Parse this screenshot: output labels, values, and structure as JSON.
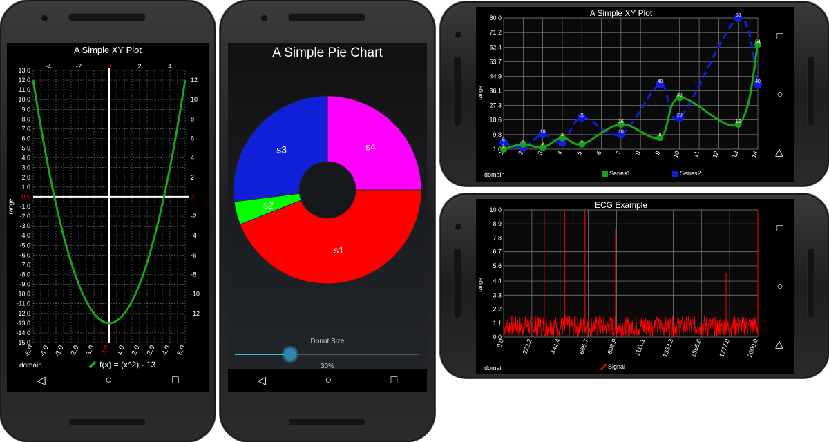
{
  "colors": {
    "green": "#1aa31a",
    "blue": "#1020d8",
    "red": "#ff0000",
    "magenta": "#ff00ff",
    "lime": "#00ff00",
    "slider": "#33b5e5"
  },
  "phone1": {
    "title": "A Simple XY Plot",
    "range_label": "range",
    "domain_label": "domain",
    "legend": "f(x) = (x^2) - 13",
    "nav": {
      "back": "◁",
      "home": "○",
      "recents": "□"
    }
  },
  "phone2": {
    "title": "A Simple Pie Chart",
    "slider_label": "Donut Size",
    "slider_value": "30%",
    "slider_fraction": 0.3,
    "nav": {
      "back": "◁",
      "home": "○",
      "recents": "□"
    }
  },
  "phone3": {
    "title": "A Simple XY Plot",
    "range_label": "range",
    "domain_label": "domain",
    "legend1": "Series1",
    "legend2": "Series2",
    "nav": {
      "recents": "□",
      "home": "○",
      "back": "◁"
    }
  },
  "phone4": {
    "title": "ECG Example",
    "range_label": "range",
    "domain_label": "domain",
    "legend": "Signal",
    "nav": {
      "recents": "□",
      "home": "○",
      "back": "◁"
    }
  },
  "chart_data": [
    {
      "type": "line",
      "title": "A Simple XY Plot",
      "xlabel": "domain",
      "ylabel": "range",
      "xlim": [
        -5,
        5
      ],
      "ylim": [
        -15,
        13
      ],
      "x_ticks_bottom": [
        "-5.0",
        "-4.0",
        "-3.0",
        "-2.0",
        "-1.0",
        "0.0",
        "1.0",
        "2.0",
        "3.0",
        "4.0",
        "5.0"
      ],
      "x_ticks_top": [
        "-4",
        "-2",
        "0",
        "2",
        "4"
      ],
      "y_ticks_left": [
        "13.0",
        "12.0",
        "11.0",
        "10.0",
        "9.0",
        "8.0",
        "7.0",
        "6.0",
        "5.0",
        "4.0",
        "3.0",
        "2.0",
        "1.0",
        "0.0",
        "-1.0",
        "-2.0",
        "-3.0",
        "-4.0",
        "-5.0",
        "-6.0",
        "-7.0",
        "-8.0",
        "-9.0",
        "-10.0",
        "-11.0",
        "-12.0",
        "-13.0",
        "-14.0",
        "-15.0"
      ],
      "y_ticks_right": [
        "12",
        "10",
        "8",
        "6",
        "4",
        "2",
        "0",
        "-2",
        "-4",
        "-6",
        "-8",
        "-10",
        "-12"
      ],
      "series": [
        {
          "name": "f(x) = (x^2) - 13",
          "function": "x^2 - 13"
        }
      ]
    },
    {
      "type": "pie",
      "title": "A Simple Pie Chart",
      "donut_size_percent": 30,
      "slices": [
        {
          "label": "s1",
          "value": 44,
          "color": "#ff0000"
        },
        {
          "label": "s2",
          "value": 4,
          "color": "#00ff00"
        },
        {
          "label": "s3",
          "value": 27,
          "color": "#1020d8"
        },
        {
          "label": "s4",
          "value": 25,
          "color": "#ff00ff"
        }
      ]
    },
    {
      "type": "line",
      "title": "A Simple XY Plot",
      "xlabel": "domain",
      "ylabel": "range",
      "ylim": [
        1.0,
        80.0
      ],
      "y_ticks": [
        "80.0",
        "71.2",
        "62.4",
        "53.7",
        "44.9",
        "36.1",
        "27.3",
        "18.6",
        "9.8",
        "1.0"
      ],
      "categories": [
        "1",
        "2",
        "3",
        "4",
        "5",
        "6",
        "7",
        "8",
        "9",
        "10",
        "11",
        "12",
        "13",
        "14"
      ],
      "x_tick_labels": [
        "1",
        "2",
        "3",
        "4",
        "5",
        "6",
        "7",
        "8",
        "9",
        "10",
        "11",
        "12",
        "13",
        "14"
      ],
      "series": [
        {
          "name": "Series1",
          "values": [
            1,
            4,
            2,
            8,
            4,
            16,
            8,
            32,
            16,
            64
          ],
          "x": [
            1,
            2,
            3,
            4,
            5,
            7,
            9,
            10,
            13,
            14
          ]
        },
        {
          "name": "Series2",
          "values": [
            5,
            2,
            10,
            5,
            20,
            10,
            40,
            20,
            80,
            40
          ],
          "x": [
            1,
            2,
            3,
            4,
            5,
            7,
            9,
            10,
            13,
            14
          ]
        }
      ]
    },
    {
      "type": "line",
      "title": "ECG Example",
      "xlabel": "domain",
      "ylabel": "range",
      "xlim": [
        0,
        2000
      ],
      "ylim": [
        0,
        10
      ],
      "x_ticks": [
        "0.0",
        "222.2",
        "444.4",
        "666.7",
        "888.9",
        "1111.1",
        "1333.3",
        "1555.6",
        "1777.8",
        "2000.0"
      ],
      "y_ticks": [
        "10.0",
        "8.9",
        "7.8",
        "6.7",
        "5.6",
        "4.4",
        "3.3",
        "2.2",
        "1.1",
        "0.0"
      ],
      "series": [
        {
          "name": "Signal",
          "baseline_max": 1.7,
          "spikes": [
            {
              "x": 320,
              "y": 9.9
            },
            {
              "x": 480,
              "y": 9.9
            },
            {
              "x": 640,
              "y": 10
            },
            {
              "x": 880,
              "y": 8.6
            },
            {
              "x": 1750,
              "y": 5.0
            }
          ]
        }
      ]
    }
  ]
}
